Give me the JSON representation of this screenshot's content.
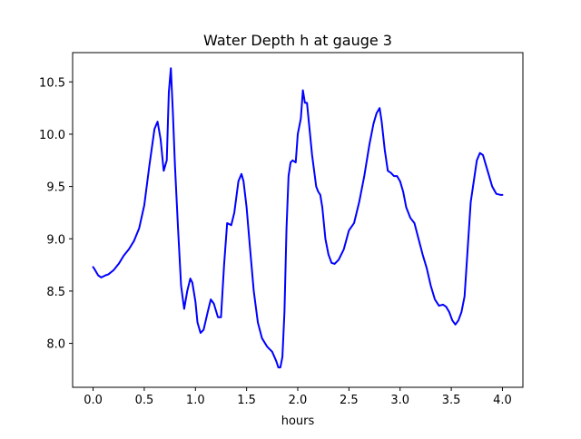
{
  "chart_data": {
    "type": "line",
    "title": "Water Depth h at gauge 3",
    "xlabel": "hours",
    "ylabel": "",
    "xlim": [
      -0.2,
      4.2
    ],
    "ylim": [
      7.58,
      10.78
    ],
    "xticks": [
      0.0,
      0.5,
      1.0,
      1.5,
      2.0,
      2.5,
      3.0,
      3.5,
      4.0
    ],
    "xtick_labels": [
      "0.0",
      "0.5",
      "1.0",
      "1.5",
      "2.0",
      "2.5",
      "3.0",
      "3.5",
      "4.0"
    ],
    "yticks": [
      8.0,
      8.5,
      9.0,
      9.5,
      10.0,
      10.5
    ],
    "ytick_labels": [
      "8.0",
      "8.5",
      "9.0",
      "9.5",
      "10.0",
      "10.5"
    ],
    "grid": false,
    "colors": {
      "line": "#0000ff",
      "axes": "#000000",
      "background": "#ffffff"
    },
    "series": [
      {
        "x": [
          0.0,
          0.02,
          0.05,
          0.08,
          0.12,
          0.15,
          0.2,
          0.25,
          0.3,
          0.35,
          0.4,
          0.45,
          0.5,
          0.55,
          0.6,
          0.63,
          0.66,
          0.69,
          0.72,
          0.74,
          0.76,
          0.78,
          0.8,
          0.83,
          0.86,
          0.89,
          0.92,
          0.95,
          0.97,
          1.0,
          1.02,
          1.05,
          1.08,
          1.12,
          1.15,
          1.18,
          1.22,
          1.25,
          1.28,
          1.31,
          1.35,
          1.38,
          1.42,
          1.45,
          1.47,
          1.5,
          1.53,
          1.57,
          1.61,
          1.65,
          1.7,
          1.75,
          1.79,
          1.81,
          1.83,
          1.85,
          1.87,
          1.89,
          1.91,
          1.93,
          1.95,
          1.98,
          2.0,
          2.03,
          2.05,
          2.07,
          2.09,
          2.1,
          2.11,
          2.12,
          2.14,
          2.16,
          2.18,
          2.2,
          2.22,
          2.24,
          2.27,
          2.3,
          2.33,
          2.36,
          2.4,
          2.45,
          2.5,
          2.55,
          2.6,
          2.65,
          2.7,
          2.74,
          2.77,
          2.8,
          2.82,
          2.85,
          2.88,
          2.91,
          2.94,
          2.97,
          3.0,
          3.03,
          3.06,
          3.1,
          3.14,
          3.18,
          3.22,
          3.26,
          3.3,
          3.34,
          3.38,
          3.42,
          3.45,
          3.48,
          3.51,
          3.54,
          3.57,
          3.6,
          3.63,
          3.66,
          3.69,
          3.72,
          3.75,
          3.78,
          3.81,
          3.84,
          3.87,
          3.9,
          3.94,
          3.98,
          4.0
        ],
        "y": [
          8.73,
          8.7,
          8.65,
          8.63,
          8.65,
          8.66,
          8.7,
          8.76,
          8.84,
          8.9,
          8.98,
          9.1,
          9.32,
          9.7,
          10.05,
          10.12,
          9.95,
          9.65,
          9.75,
          10.4,
          10.63,
          10.2,
          9.7,
          9.1,
          8.55,
          8.33,
          8.5,
          8.62,
          8.58,
          8.4,
          8.2,
          8.1,
          8.13,
          8.3,
          8.42,
          8.38,
          8.25,
          8.25,
          8.75,
          9.15,
          9.13,
          9.25,
          9.55,
          9.62,
          9.55,
          9.3,
          8.95,
          8.5,
          8.2,
          8.05,
          7.97,
          7.92,
          7.83,
          7.77,
          7.77,
          7.87,
          8.3,
          9.1,
          9.6,
          9.73,
          9.75,
          9.73,
          10.0,
          10.15,
          10.42,
          10.3,
          10.3,
          10.2,
          10.1,
          10.0,
          9.8,
          9.65,
          9.5,
          9.45,
          9.42,
          9.3,
          9.0,
          8.85,
          8.77,
          8.76,
          8.8,
          8.9,
          9.08,
          9.15,
          9.35,
          9.6,
          9.9,
          10.1,
          10.2,
          10.25,
          10.12,
          9.85,
          9.65,
          9.63,
          9.6,
          9.6,
          9.55,
          9.45,
          9.3,
          9.2,
          9.15,
          9.0,
          8.85,
          8.72,
          8.55,
          8.42,
          8.36,
          8.37,
          8.35,
          8.3,
          8.22,
          8.18,
          8.22,
          8.3,
          8.45,
          8.9,
          9.35,
          9.55,
          9.75,
          9.82,
          9.8,
          9.7,
          9.6,
          9.5,
          9.43,
          9.42,
          9.42
        ]
      }
    ]
  }
}
